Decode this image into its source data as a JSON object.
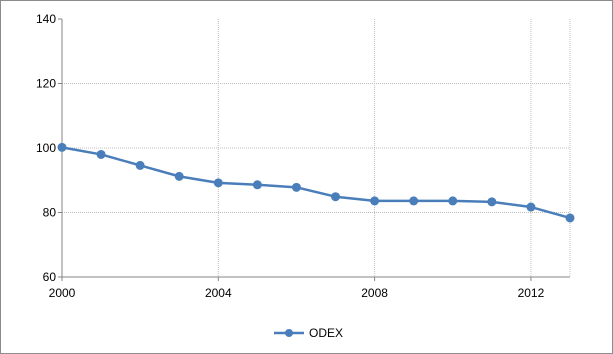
{
  "chart_data": {
    "type": "line",
    "title": "",
    "xlabel": "",
    "ylabel": "",
    "x": [
      2000,
      2001,
      2002,
      2003,
      2004,
      2005,
      2006,
      2007,
      2008,
      2009,
      2010,
      2011,
      2012,
      2013
    ],
    "series": [
      {
        "name": "ODEX",
        "values": [
          100.2,
          98.0,
          94.6,
          91.2,
          89.2,
          88.6,
          87.8,
          84.9,
          83.6,
          83.6,
          83.6,
          83.3,
          81.7,
          78.3
        ]
      }
    ],
    "xlim": [
      2000,
      2013
    ],
    "ylim": [
      60,
      140
    ],
    "x_ticks": [
      "2000",
      "2004",
      "2008",
      "2012"
    ],
    "y_ticks": [
      "60",
      "80",
      "100",
      "120",
      "140"
    ],
    "grid": true,
    "legend_position": "bottom",
    "colors": {
      "series": "#4a7ebb",
      "grid": "#bfbfbf",
      "axis": "#868686",
      "border": "#8c8c8c"
    }
  }
}
